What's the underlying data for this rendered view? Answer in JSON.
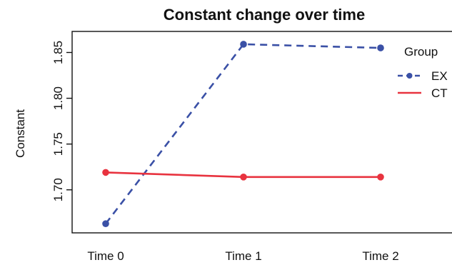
{
  "chart_data": {
    "type": "line",
    "title": "Constant change over time",
    "xlabel": "",
    "ylabel": "Constant",
    "categories": [
      "Time 0",
      "Time 1",
      "Time 2"
    ],
    "y_ticks": [
      "1.70",
      "1.75",
      "1.80",
      "1.85"
    ],
    "ylim": [
      1.653,
      1.873
    ],
    "grid": false,
    "legend": {
      "title": "Group",
      "position": "right"
    },
    "series": [
      {
        "name": "EX",
        "values": [
          1.663,
          1.859,
          1.855
        ],
        "color": "#3a50a6",
        "style": "dashed",
        "marker": "circle"
      },
      {
        "name": "CT",
        "values": [
          1.719,
          1.714,
          1.714
        ],
        "color": "#e8333f",
        "style": "solid",
        "marker": "circle"
      }
    ]
  }
}
